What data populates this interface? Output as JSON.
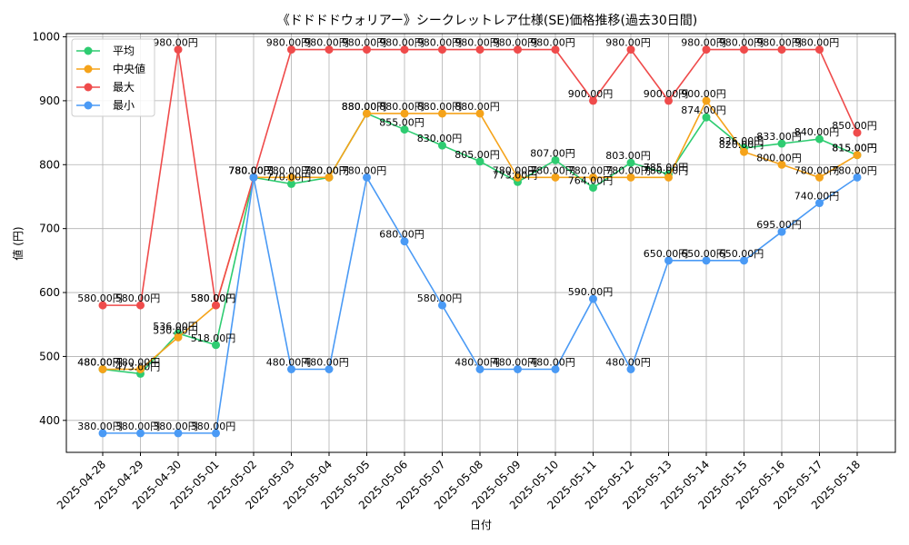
{
  "chart_data": {
    "type": "line",
    "title": "《ドドドドウォリアー》シークレットレア仕様(SE)価格推移(過去30日間)",
    "xlabel": "日付",
    "ylabel": "値 (円)",
    "ylim": [
      350,
      1005
    ],
    "yticks": [
      400,
      500,
      600,
      700,
      800,
      900,
      1000
    ],
    "grid": true,
    "legend_position": "top-left",
    "label_suffix": "円",
    "categories": [
      "2025-04-28",
      "2025-04-29",
      "2025-04-30",
      "2025-05-01",
      "2025-05-02",
      "2025-05-03",
      "2025-05-04",
      "2025-05-05",
      "2025-05-06",
      "2025-05-07",
      "2025-05-08",
      "2025-05-09",
      "2025-05-10",
      "2025-05-11",
      "2025-05-12",
      "2025-05-13",
      "2025-05-14",
      "2025-05-15",
      "2025-05-16",
      "2025-05-17",
      "2025-05-18"
    ],
    "series": [
      {
        "name": "平均",
        "color": "#2ecc71",
        "values": [
          480,
          473,
          536,
          518,
          780,
          770,
          780,
          880,
          855,
          830,
          805,
          773,
          807,
          764,
          803,
          785,
          874,
          826,
          833,
          840,
          815
        ]
      },
      {
        "name": "中央値",
        "color": "#f5a31a",
        "values": [
          480,
          480,
          530,
          580,
          780,
          780,
          780,
          880,
          880,
          880,
          880,
          780,
          780,
          780,
          780,
          780,
          900,
          820,
          800,
          780,
          815
        ]
      },
      {
        "name": "最大",
        "color": "#ef4b4b",
        "values": [
          580,
          580,
          980,
          580,
          780,
          980,
          980,
          980,
          980,
          980,
          980,
          980,
          980,
          900,
          980,
          900,
          980,
          980,
          980,
          980,
          850
        ]
      },
      {
        "name": "最小",
        "color": "#4a9af5",
        "values": [
          380,
          380,
          380,
          380,
          780,
          480,
          480,
          780,
          680,
          580,
          480,
          480,
          480,
          590,
          480,
          650,
          650,
          650,
          695,
          740,
          780
        ]
      }
    ]
  }
}
